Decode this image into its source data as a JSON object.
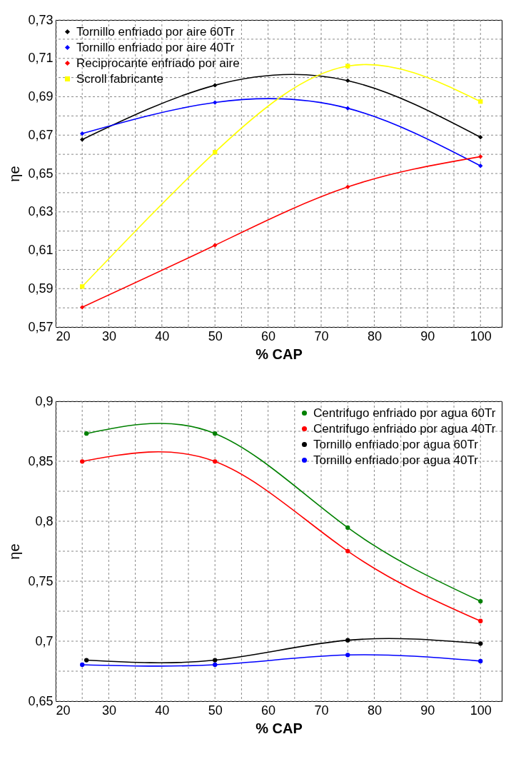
{
  "chart_data": [
    {
      "type": "line",
      "xlabel": "% CAP",
      "ylabel": "ηe",
      "x": [
        25,
        50,
        75,
        100
      ],
      "marker": "diamond",
      "grid": true,
      "legend": "top left",
      "xlim": [
        20,
        104
      ],
      "xticks": [
        20,
        {
          "value": 25,
          "label": null
        },
        30,
        {
          "value": 35,
          "label": null
        },
        40,
        {
          "value": 45,
          "label": null
        },
        50,
        {
          "value": 55,
          "label": null
        },
        60,
        {
          "value": 65,
          "label": null
        },
        70,
        {
          "value": 75,
          "label": null
        },
        80,
        {
          "value": 85,
          "label": null
        },
        90,
        {
          "value": 95,
          "label": null
        },
        100
      ],
      "ylim": [
        0.57,
        0.73
      ],
      "yticks": [
        {
          "value": 0.57,
          "label": "0,57"
        },
        {
          "value": 0.58,
          "label": null
        },
        {
          "value": 0.59,
          "label": "0,59"
        },
        {
          "value": 0.6,
          "label": null
        },
        {
          "value": 0.61,
          "label": "0,61"
        },
        {
          "value": 0.62,
          "label": null
        },
        {
          "value": 0.63,
          "label": "0,63"
        },
        {
          "value": 0.64,
          "label": null
        },
        {
          "value": 0.65,
          "label": "0,65"
        },
        {
          "value": 0.66,
          "label": null
        },
        {
          "value": 0.67,
          "label": "0,67"
        },
        {
          "value": 0.68,
          "label": null
        },
        {
          "value": 0.69,
          "label": "0,69"
        },
        {
          "value": 0.7,
          "label": null
        },
        {
          "value": 0.71,
          "label": "0,71"
        },
        {
          "value": 0.72,
          "label": null
        },
        {
          "value": 0.73,
          "label": "0,73"
        }
      ],
      "series": [
        {
          "name": "Tornillo enfriado por aire 60Tr",
          "color": "#000000",
          "values": [
            0.6677,
            0.696,
            0.6984,
            0.6689
          ]
        },
        {
          "name": "Tornillo enfriado por aire 40Tr",
          "color": "#0000ff",
          "values": [
            0.6708,
            0.687,
            0.684,
            0.654
          ]
        },
        {
          "name": "Reciprocante enfriado por aire",
          "color": "#ff0000",
          "values": [
            0.5803,
            0.6126,
            0.643,
            0.6588
          ]
        },
        {
          "name": "Scroll fabricante",
          "color": "#ffff00",
          "marker": "square",
          "values": [
            0.5911,
            0.6611,
            0.706,
            0.6875
          ]
        }
      ]
    },
    {
      "type": "line",
      "xlabel": "% CAP",
      "ylabel": "ηe",
      "x": [
        25,
        50,
        75,
        100
      ],
      "marker": "circle",
      "grid": true,
      "legend": "top right",
      "xlim": [
        20,
        104
      ],
      "xticks": [
        20,
        {
          "value": 25,
          "label": null
        },
        30,
        {
          "value": 35,
          "label": null
        },
        40,
        {
          "value": 45,
          "label": null
        },
        50,
        {
          "value": 55,
          "label": null
        },
        60,
        {
          "value": 65,
          "label": null
        },
        70,
        {
          "value": 75,
          "label": null
        },
        80,
        {
          "value": 85,
          "label": null
        },
        90,
        {
          "value": 95,
          "label": null
        },
        100
      ],
      "ylim": [
        0.65,
        0.9
      ],
      "yticks": [
        {
          "value": 0.65,
          "label": "0,65"
        },
        {
          "value": 0.675,
          "label": null
        },
        {
          "value": 0.7,
          "label": "0,7"
        },
        {
          "value": 0.725,
          "label": null
        },
        {
          "value": 0.75,
          "label": "0,75"
        },
        {
          "value": 0.775,
          "label": null
        },
        {
          "value": 0.8,
          "label": "0,8"
        },
        {
          "value": 0.825,
          "label": null
        },
        {
          "value": 0.85,
          "label": "0,85"
        },
        {
          "value": 0.875,
          "label": null
        },
        {
          "value": 0.9,
          "label": "0,9"
        }
      ],
      "series": [
        {
          "name": "Centrifugo enfriado por agua 60Tr",
          "color": "#008000",
          "x": [
            25.8,
            50,
            75,
            100
          ],
          "values": [
            0.8731,
            0.8731,
            0.7947,
            0.7333
          ]
        },
        {
          "name": "Centrifugo enfriado por agua 40Tr",
          "color": "#ff0000",
          "values": [
            0.8498,
            0.8498,
            0.7751,
            0.7168
          ]
        },
        {
          "name": "Tornillo enfriado por agua 60Tr",
          "color": "#000000",
          "x": [
            25.8,
            50,
            75,
            100
          ],
          "values": [
            0.6842,
            0.6842,
            0.7008,
            0.698
          ]
        },
        {
          "name": "Tornillo enfriado por agua 40Tr",
          "color": "#0000ff",
          "values": [
            0.6804,
            0.6804,
            0.6885,
            0.6834
          ]
        }
      ]
    }
  ]
}
